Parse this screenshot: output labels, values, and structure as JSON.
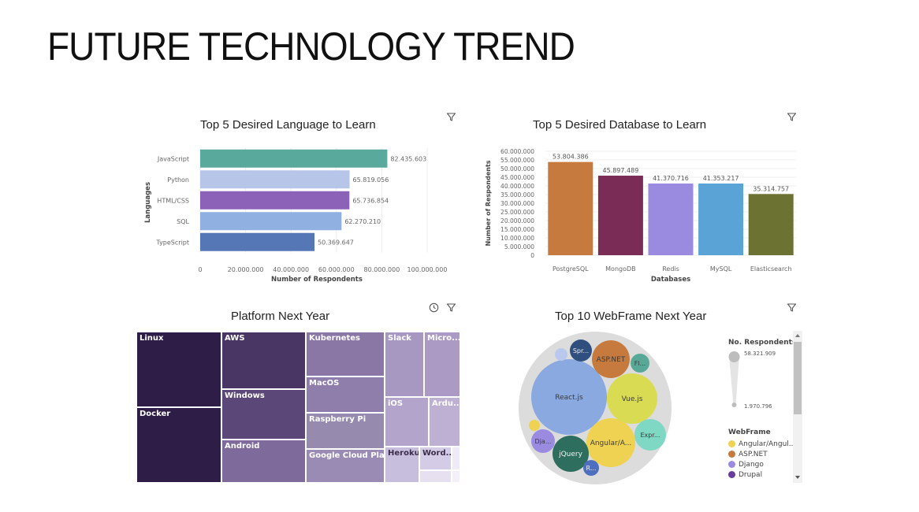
{
  "slide": {
    "title": "FUTURE TECHNOLOGY TREND"
  },
  "icons": {
    "filter": "filter-icon",
    "clock": "clock-icon",
    "scroll_up": "chevron-up-icon",
    "scroll_down": "chevron-down-icon"
  },
  "chart_data": [
    {
      "type": "bar",
      "orientation": "horizontal",
      "title": "Top 5 Desired Language to Learn",
      "ylabel": "Languages",
      "xlabel": "Number of Respondents",
      "categories": [
        "JavaScript",
        "Python",
        "HTML/CSS",
        "SQL",
        "TypeScript"
      ],
      "values": [
        82435603,
        65819056,
        65736854,
        62270210,
        50369647
      ],
      "value_labels": [
        "82.435.603",
        "65.819.056",
        "65.736.854",
        "62.270.210",
        "50.369.647"
      ],
      "colors": [
        "#5aa99d",
        "#b7c6e8",
        "#8c62b8",
        "#8fb0e0",
        "#5577b5"
      ],
      "xlim": [
        0,
        100000000
      ],
      "xticks": [
        0,
        20000000,
        40000000,
        60000000,
        80000000,
        100000000
      ],
      "xtick_labels": [
        "0",
        "20.000.000",
        "40.000.000",
        "60.000.000",
        "80.000.000",
        "100.000.000"
      ]
    },
    {
      "type": "bar",
      "orientation": "vertical",
      "title": "Top 5 Desired Database to Learn",
      "xlabel": "Databases",
      "ylabel": "Number of Respondents",
      "categories": [
        "PostgreSQL",
        "MongoDB",
        "Redis",
        "MySQL",
        "Elasticsearch"
      ],
      "values": [
        53804386,
        45897489,
        41370716,
        41353217,
        35314757
      ],
      "value_labels": [
        "53.804.386",
        "45.897.489",
        "41.370.716",
        "41.353.217",
        "35.314.757"
      ],
      "colors": [
        "#c67a3d",
        "#7a2c57",
        "#9b8be0",
        "#5aa3d6",
        "#6b7232"
      ],
      "ylim": [
        0,
        60000000
      ],
      "yticks": [
        0,
        5000000,
        10000000,
        15000000,
        20000000,
        25000000,
        30000000,
        35000000,
        40000000,
        45000000,
        50000000,
        55000000,
        60000000
      ],
      "ytick_labels": [
        "0",
        "5.000.000",
        "10.000.000",
        "15.000.000",
        "20.000.000",
        "25.000.000",
        "30.000.000",
        "35.000.000",
        "40.000.000",
        "45.000.000",
        "50.000.000",
        "55.000.000",
        "60.000.000"
      ]
    },
    {
      "type": "treemap",
      "title": "Platform Next Year",
      "items": [
        {
          "label": "Linux",
          "color": "#2e1d47"
        },
        {
          "label": "Docker",
          "color": "#2e1d47"
        },
        {
          "label": "AWS",
          "color": "#4a3665"
        },
        {
          "label": "Windows",
          "color": "#5c4878"
        },
        {
          "label": "Android",
          "color": "#7e6b9c"
        },
        {
          "label": "Kubernetes",
          "color": "#8a77a6"
        },
        {
          "label": "MacOS",
          "color": "#8f7dac"
        },
        {
          "label": "Raspberry Pi",
          "color": "#978aaf"
        },
        {
          "label": "Google Cloud Pla...",
          "color": "#9a8bb5"
        },
        {
          "label": "Slack",
          "color": "#a798c2"
        },
        {
          "label": "Micro...",
          "color": "#ab9bc4"
        },
        {
          "label": "iOS",
          "color": "#b2a4ca"
        },
        {
          "label": "Ardu...",
          "color": "#bdb0d3"
        },
        {
          "label": "Heroku",
          "color": "#c7bddd"
        },
        {
          "label": "Word...",
          "color": "#d4cbe6"
        },
        {
          "label": "",
          "color": "#e6e0f1"
        },
        {
          "label": "",
          "color": "#eeeaf6"
        },
        {
          "label": "",
          "color": "#f3f0f9"
        }
      ]
    },
    {
      "type": "bubble",
      "title": "Top 10 WebFrame Next Year",
      "legend_title": "No. Respondents",
      "size_max_label": "58.321.909",
      "size_min_label": "1.970.796",
      "color_legend_title": "WebFrame",
      "bubbles": [
        {
          "label": "React.js",
          "color": "#8aa9e0"
        },
        {
          "label": "Angular/A...",
          "color": "#efd252"
        },
        {
          "label": "Vue.js",
          "color": "#d9dc52"
        },
        {
          "label": "jQuery",
          "color": "#2e6e5e"
        },
        {
          "label": "ASP.NET",
          "color": "#c67a3d"
        },
        {
          "label": "Expr...",
          "color": "#7ed8c4"
        },
        {
          "label": "Spr...",
          "color": "#2f4f7f"
        },
        {
          "label": "Dja...",
          "color": "#9b8be0"
        },
        {
          "label": "Fl...",
          "color": "#58a897"
        },
        {
          "label": "R...",
          "color": "#4e6fbf"
        },
        {
          "label": "",
          "color": "#b9c9ee"
        },
        {
          "label": "",
          "color": "#efd252"
        }
      ],
      "legend_items": [
        {
          "label": "Angular/Angul...",
          "color": "#efd252"
        },
        {
          "label": "ASP.NET",
          "color": "#c67a3d"
        },
        {
          "label": "Django",
          "color": "#9b8be0"
        },
        {
          "label": "Drupal",
          "color": "#6a3d9a"
        }
      ]
    }
  ]
}
